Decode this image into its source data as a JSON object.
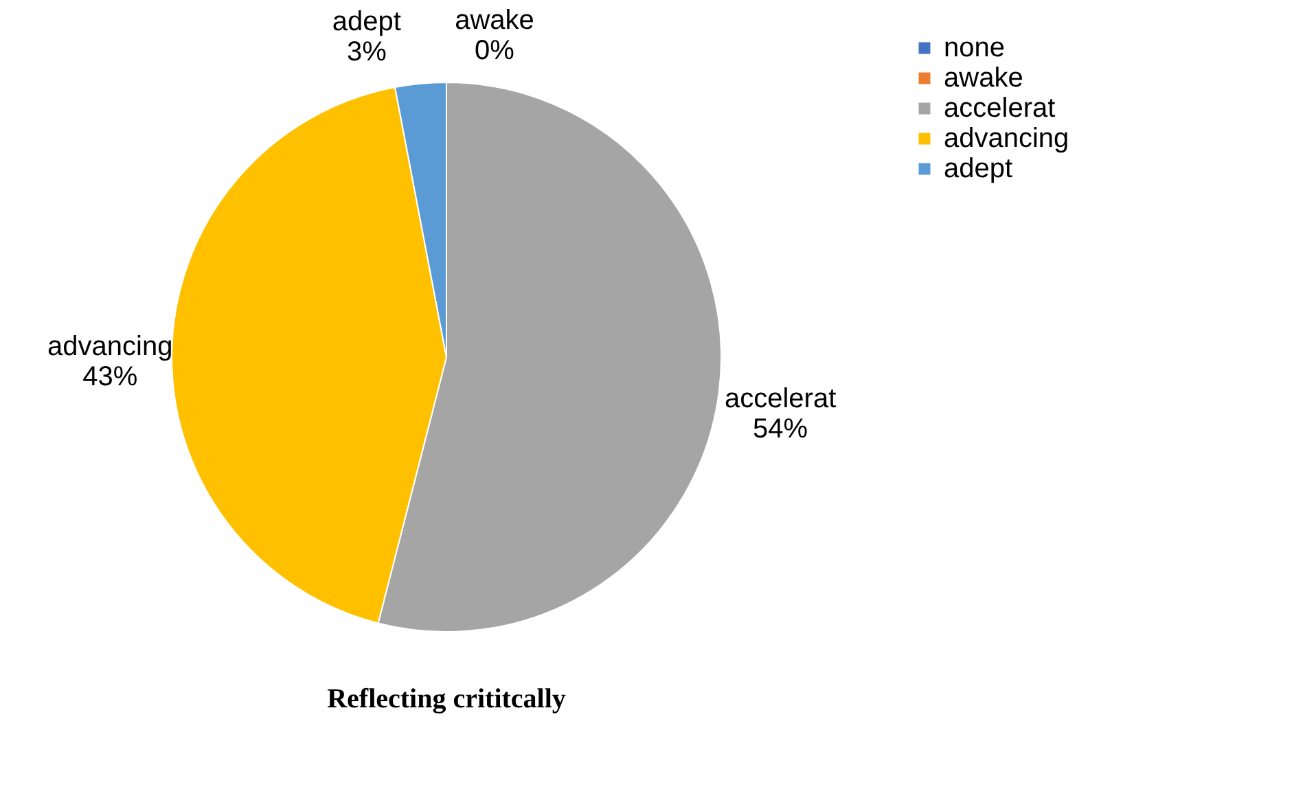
{
  "chart_data": {
    "type": "pie",
    "title": "Reflecting crititcally",
    "categories": [
      "none",
      "awake",
      "accelerat",
      "advancing",
      "adept"
    ],
    "values": [
      0,
      0,
      54,
      43,
      3
    ],
    "colors": [
      "#4472c4",
      "#ed7d31",
      "#a5a5a5",
      "#ffc000",
      "#5b9bd5"
    ],
    "value_labels": [
      null,
      "0%",
      "54%",
      "43%",
      "3%"
    ],
    "legend": "right"
  }
}
